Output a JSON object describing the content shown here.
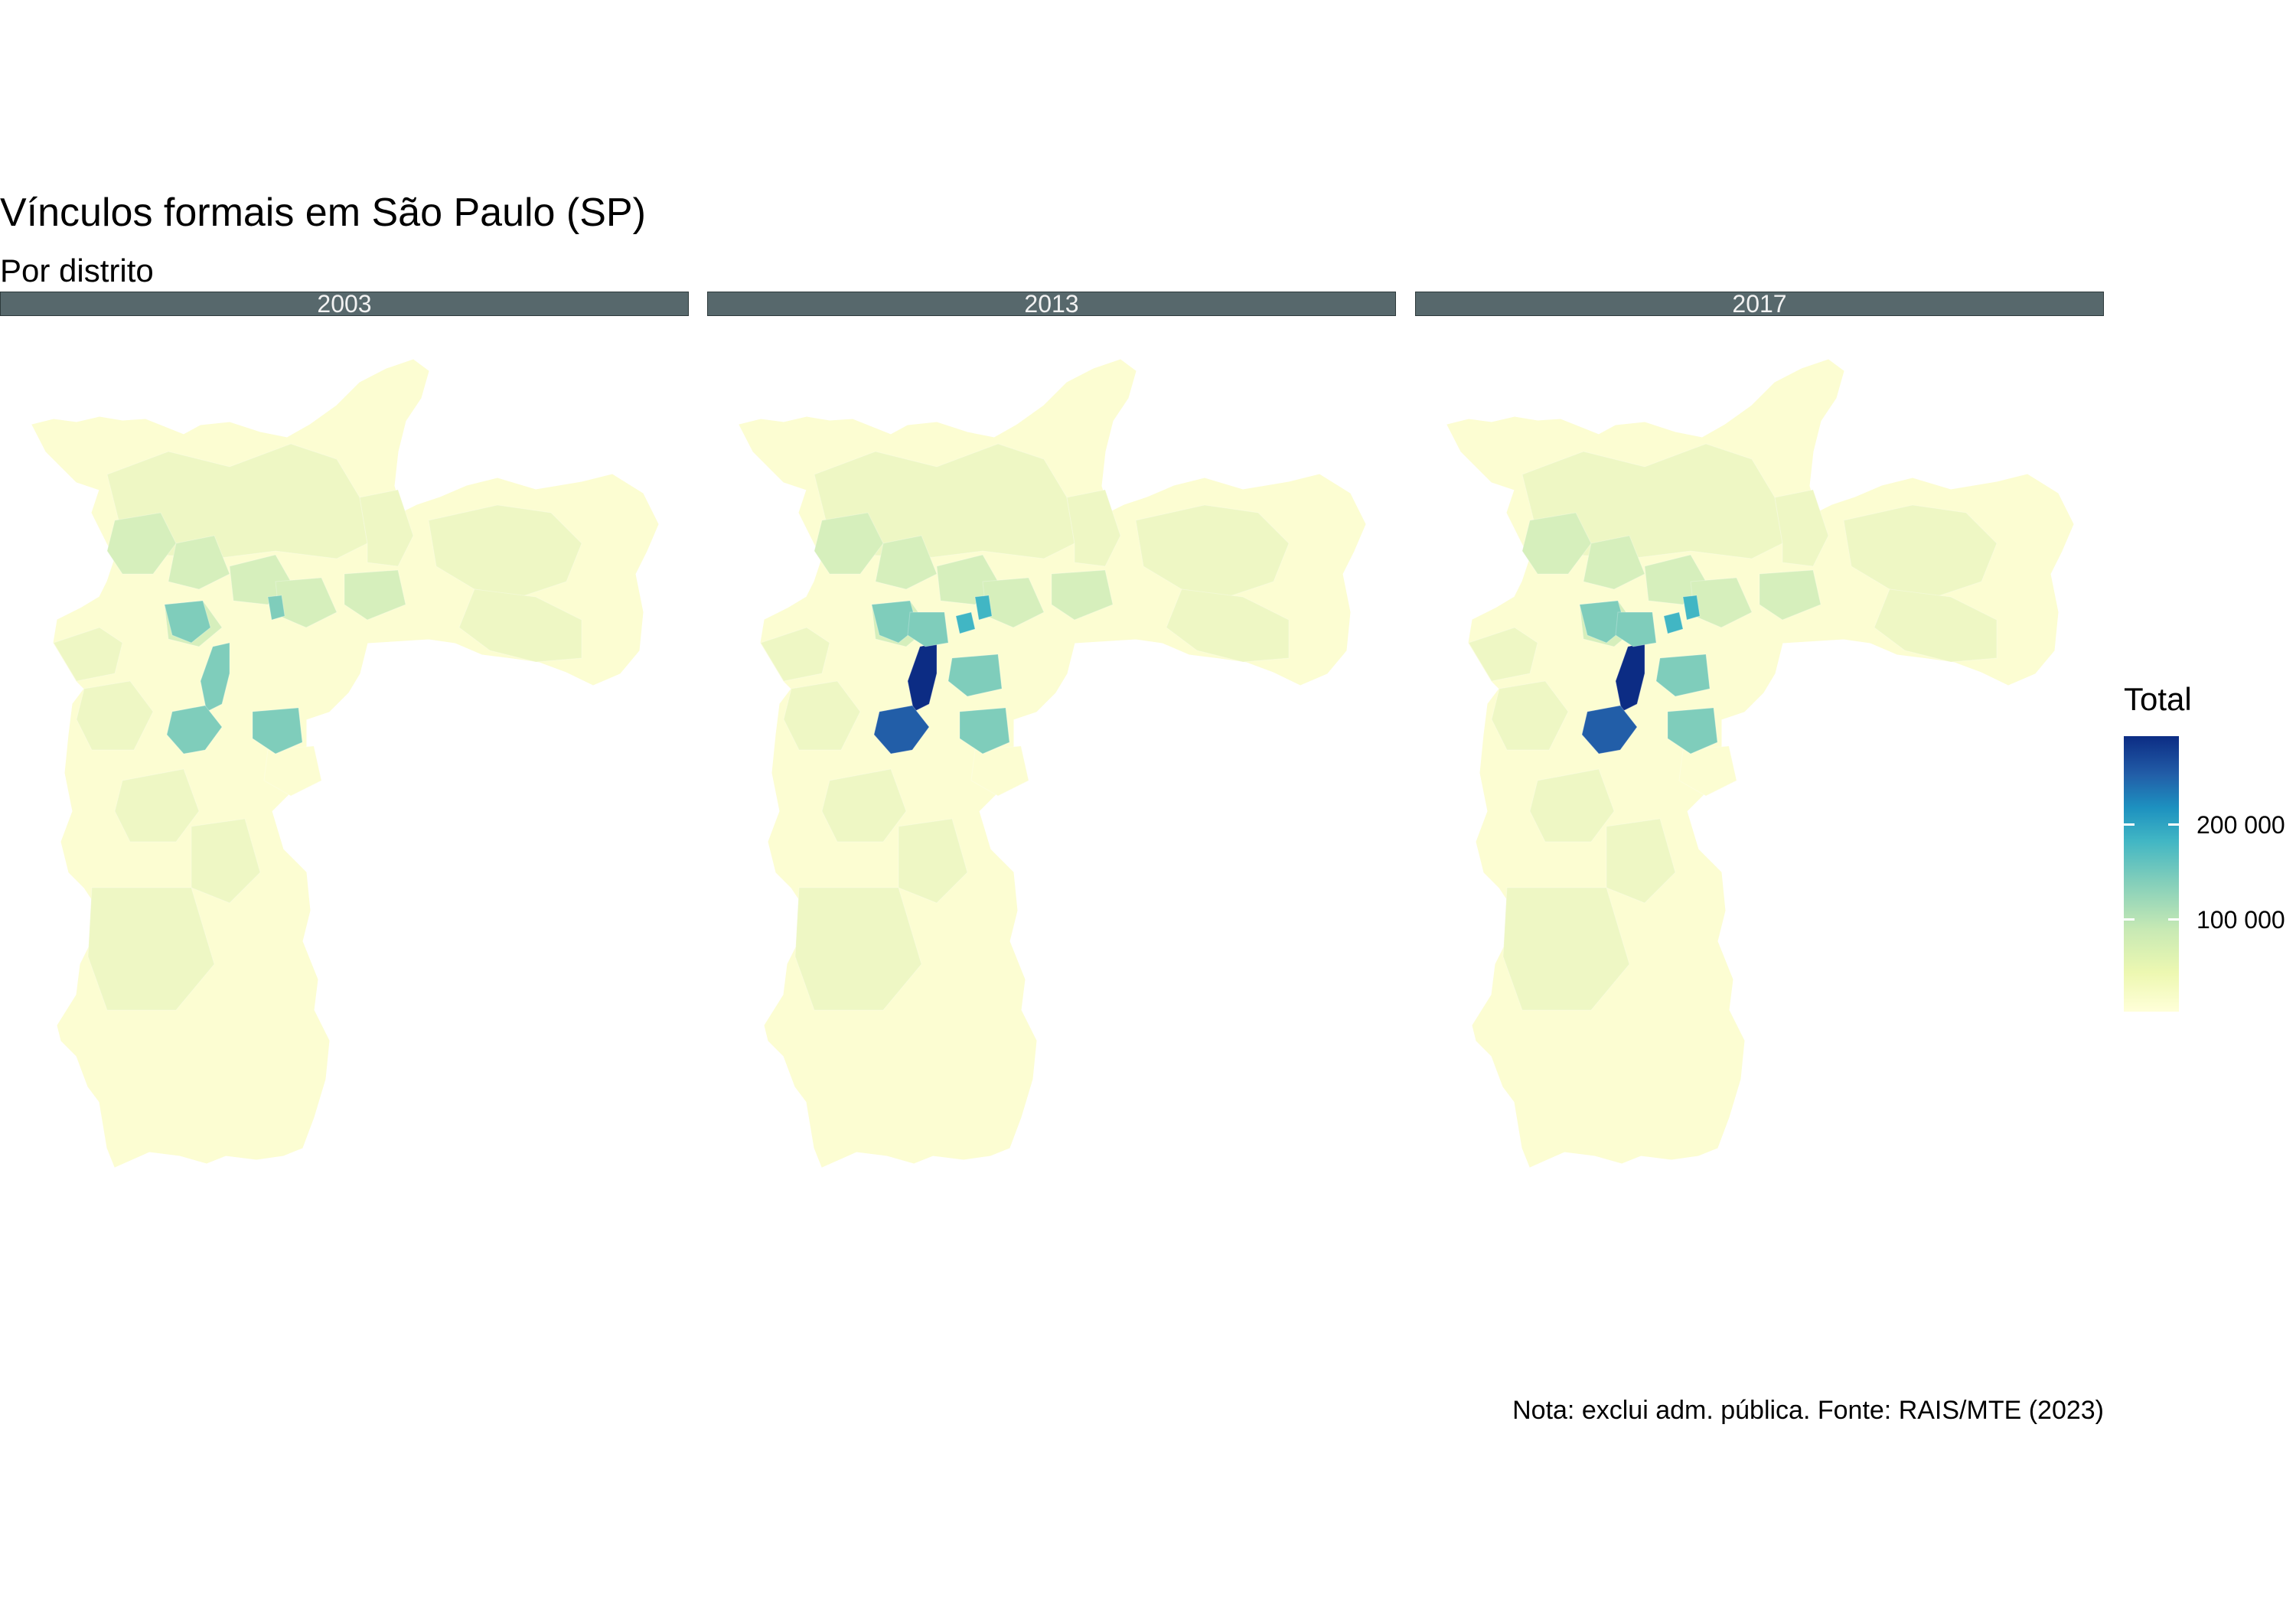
{
  "title": "Vínculos formais em São Paulo (SP)",
  "subtitle": "Por distrito",
  "caption": "Nota: exclui adm. pública. Fonte: RAIS/MTE (2023)",
  "facets": [
    {
      "label": "2003"
    },
    {
      "label": "2013"
    },
    {
      "label": "2017"
    }
  ],
  "legend": {
    "title": "Total",
    "ticks": [
      {
        "value": 200000,
        "label": "200 000"
      },
      {
        "value": 100000,
        "label": "100 000"
      }
    ],
    "range": [
      0,
      290000
    ],
    "colors": [
      "#ffffd9",
      "#edf8b1",
      "#c7e9b4",
      "#7fcdbb",
      "#41b6c4",
      "#1d91c0",
      "#225ea8",
      "#0c2c84"
    ]
  },
  "map_colors": {
    "base": "#fcfdd2",
    "light": "#eef7c4",
    "mid": "#d6efbc",
    "teal": "#7fcdbb",
    "cyan": "#41b6c4",
    "blue": "#225ea8",
    "dark": "#0c2c84"
  }
}
